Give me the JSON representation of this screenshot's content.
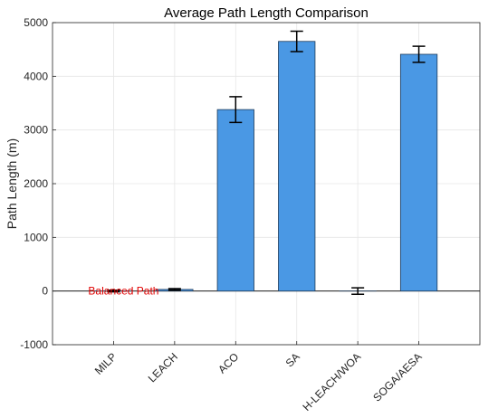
{
  "chart_data": {
    "type": "bar",
    "title": "Average Path Length Comparison",
    "xlabel": "",
    "ylabel": "Path Length (m)",
    "categories": [
      "MILP",
      "LEACH",
      "ACO",
      "SA",
      "H-LEACH/WOA",
      "SOGA/AESA"
    ],
    "values": [
      0,
      30,
      3380,
      4650,
      0,
      4410
    ],
    "error": [
      15,
      15,
      240,
      190,
      60,
      150
    ],
    "ylim": [
      -1000,
      5000
    ],
    "yticks": [
      "-1000",
      "0",
      "1000",
      "2000",
      "3000",
      "4000",
      "5000"
    ],
    "grid": true,
    "bar_color": "#4a98e4",
    "bar_edge_color": "#1f3b5a",
    "annotation": {
      "text": "Balanced Path",
      "category": "MILP",
      "value": 0,
      "color": "#e00000"
    }
  }
}
